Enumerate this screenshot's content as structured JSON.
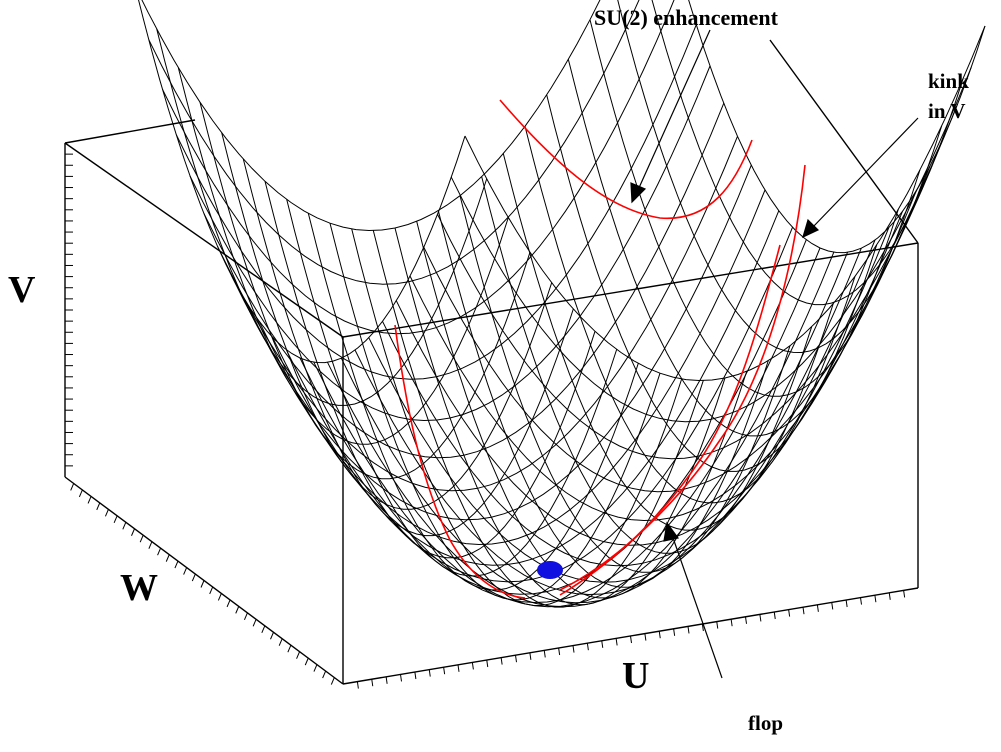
{
  "labels": {
    "axis_v": "V",
    "axis_w": "W",
    "axis_u": "U"
  },
  "annotations": {
    "su2": "SU(2) enhancement",
    "kink_line1": "kink",
    "kink_line2": "in V",
    "flop": "flop"
  },
  "colors": {
    "mesh": "#000000",
    "red_curve": "#ff0000",
    "marker": "#1010e0",
    "background": "#ffffff"
  }
}
